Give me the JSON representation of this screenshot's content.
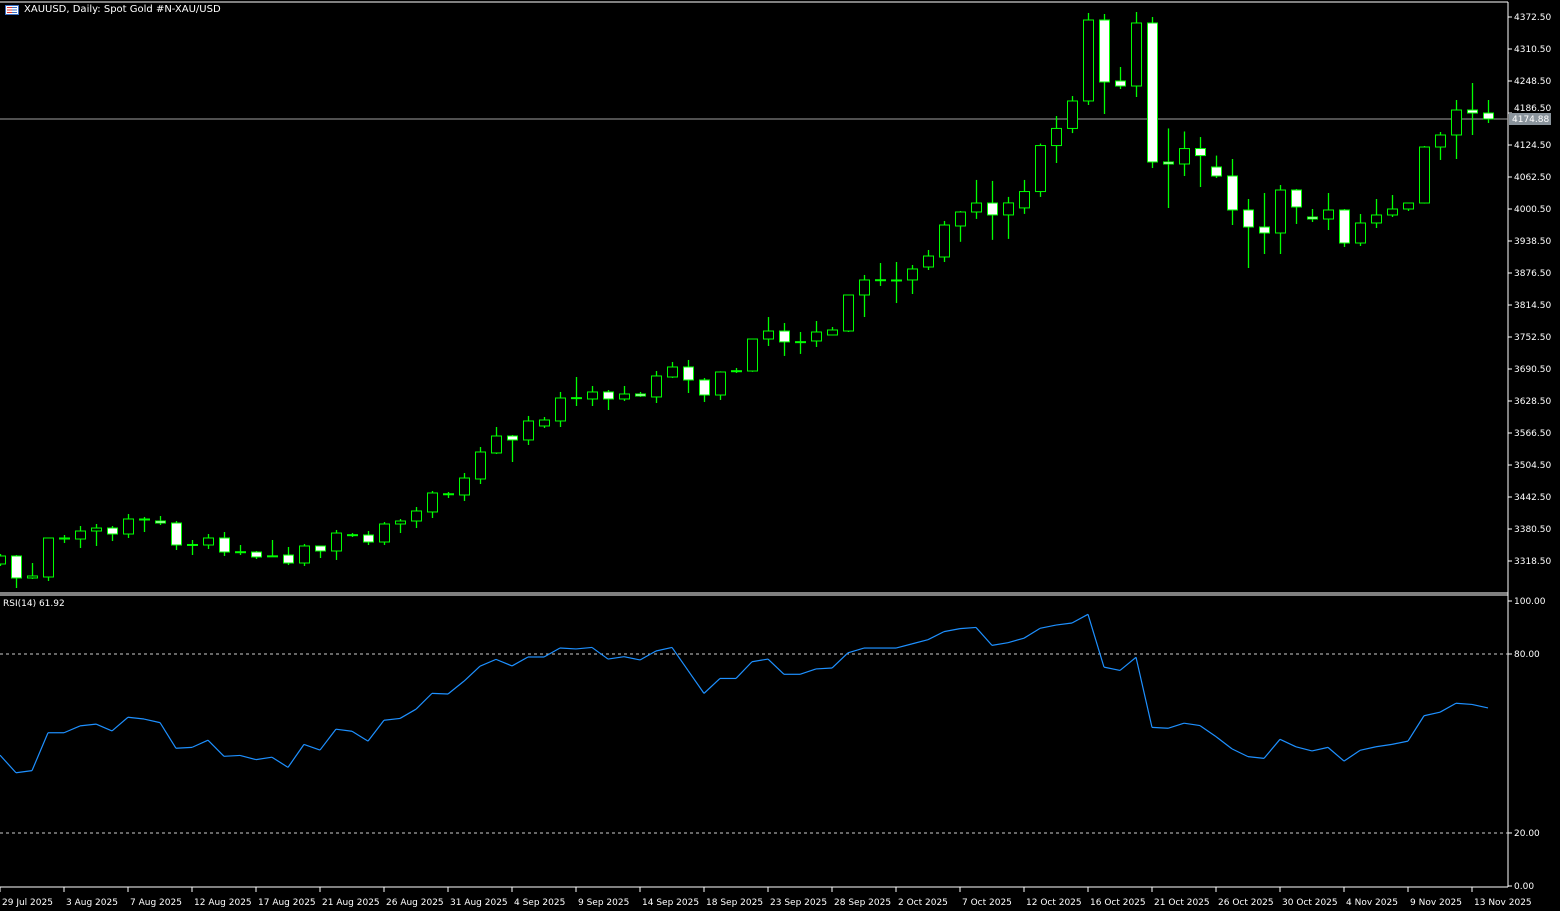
{
  "header": {
    "symbol_icon": "symbol-flag-icon",
    "title": "XAUUSD, Daily:  Spot Gold #N-XAU/USD"
  },
  "rsi_panel": {
    "label": "RSI(14) 61.92"
  },
  "colors": {
    "background": "#000000",
    "candle_outline": "#00ff00",
    "bear_fill": "#ffffff",
    "bull_fill": "#000000",
    "rsi_line": "#1e90ff",
    "price_line": "#a0a0a0",
    "price_tag_bg": "#8a949c"
  },
  "chart_data": [
    {
      "type": "candlestick",
      "title": "XAUUSD, Daily:  Spot Gold #N-XAU/USD",
      "ylim": [
        3300,
        4390
      ],
      "y_ticks": [
        "4372.50",
        "4310.50",
        "4248.50",
        "4186.50",
        "4124.50",
        "4062.50",
        "4000.50",
        "3938.50",
        "3876.50",
        "3814.50",
        "3752.50",
        "3690.50",
        "3628.50",
        "3566.50",
        "3504.50",
        "3442.50",
        "3380.50",
        "3318.50"
      ],
      "current_price": "4174.88",
      "x_tick_labels": [
        "29 Jul 2025",
        "3 Aug 2025",
        "7 Aug 2025",
        "12 Aug 2025",
        "17 Aug 2025",
        "21 Aug 2025",
        "26 Aug 2025",
        "31 Aug 2025",
        "4 Sep 2025",
        "9 Sep 2025",
        "14 Sep 2025",
        "18 Sep 2025",
        "23 Sep 2025",
        "28 Sep 2025",
        "2 Oct 2025",
        "7 Oct 2025",
        "12 Oct 2025",
        "16 Oct 2025",
        "21 Oct 2025",
        "26 Oct 2025",
        "30 Oct 2025",
        "4 Nov 2025",
        "9 Nov 2025",
        "13 Nov 2025"
      ],
      "ohlc_fields": [
        "open",
        "high",
        "low",
        "close"
      ],
      "ohlc": [
        [
          3312.7,
          3332.1,
          3308.8,
          3328.2
        ],
        [
          3328.2,
          3330.1,
          3266.2,
          3285.6
        ],
        [
          3285.6,
          3314.6,
          3283.7,
          3289.5
        ],
        [
          3287.5,
          3363.1,
          3279.8,
          3363.1
        ],
        [
          3361.1,
          3368.9,
          3353.4,
          3363.1
        ],
        [
          3361.1,
          3386.3,
          3343.7,
          3376.6
        ],
        [
          3376.6,
          3390.2,
          3347.6,
          3382.4
        ],
        [
          3382.4,
          3386.3,
          3357.2,
          3370.8
        ],
        [
          3370.8,
          3409.6,
          3363.1,
          3399.9
        ],
        [
          3398.0,
          3403.8,
          3374.7,
          3399.9
        ],
        [
          3396.0,
          3405.7,
          3388.3,
          3392.1
        ],
        [
          3392.1,
          3396.0,
          3339.8,
          3349.5
        ],
        [
          3349.5,
          3359.2,
          3330.1,
          3350.5
        ],
        [
          3349.5,
          3370.8,
          3341.8,
          3363.1
        ],
        [
          3363.1,
          3374.7,
          3328.2,
          3335.9
        ],
        [
          3335.9,
          3349.5,
          3330.1,
          3336.5
        ],
        [
          3335.9,
          3337.9,
          3322.4,
          3326.3
        ],
        [
          3328.2,
          3359.2,
          3326.3,
          3328.5
        ],
        [
          3330.1,
          3345.6,
          3310.8,
          3314.6
        ],
        [
          3314.6,
          3351.5,
          3308.8,
          3347.6
        ],
        [
          3347.6,
          3348.5,
          3324.3,
          3337.9
        ],
        [
          3337.9,
          3378.6,
          3320.5,
          3372.7
        ],
        [
          3368.9,
          3372.7,
          3365.0,
          3369.5
        ],
        [
          3368.9,
          3376.6,
          3349.5,
          3355.3
        ],
        [
          3355.3,
          3394.1,
          3349.5,
          3390.2
        ],
        [
          3390.2,
          3399.9,
          3372.7,
          3396.0
        ],
        [
          3396.0,
          3423.1,
          3382.4,
          3415.4
        ],
        [
          3413.5,
          3454.1,
          3401.8,
          3450.3
        ],
        [
          3448.3,
          3452.2,
          3440.6,
          3448.8
        ],
        [
          3446.4,
          3489.0,
          3434.8,
          3479.3
        ],
        [
          3477.4,
          3539.4,
          3467.7,
          3529.7
        ],
        [
          3527.8,
          3578.1,
          3525.8,
          3560.7
        ],
        [
          3560.7,
          3562.6,
          3510.3,
          3553.0
        ],
        [
          3553.0,
          3599.5,
          3543.3,
          3589.8
        ],
        [
          3580.1,
          3597.5,
          3576.2,
          3591.7
        ],
        [
          3589.8,
          3646.0,
          3578.1,
          3634.3
        ],
        [
          3634.3,
          3675.0,
          3618.8,
          3635.0
        ],
        [
          3632.4,
          3657.6,
          3618.8,
          3646.0
        ],
        [
          3646.0,
          3649.8,
          3611.1,
          3632.4
        ],
        [
          3632.4,
          3657.6,
          3628.5,
          3642.1
        ],
        [
          3642.1,
          3646.0,
          3636.3,
          3638.2
        ],
        [
          3636.3,
          3686.6,
          3624.6,
          3677.0
        ],
        [
          3675.0,
          3704.1,
          3673.1,
          3694.4
        ],
        [
          3694.4,
          3708.0,
          3644.0,
          3669.2
        ],
        [
          3669.2,
          3673.1,
          3626.6,
          3640.1
        ],
        [
          3640.1,
          3686.0,
          3630.5,
          3684.7
        ],
        [
          3686.6,
          3692.5,
          3682.8,
          3687.2
        ],
        [
          3686.6,
          3749.5,
          3685.0,
          3748.6
        ],
        [
          3748.6,
          3791.2,
          3735.1,
          3764.1
        ],
        [
          3764.1,
          3779.6,
          3715.8,
          3743.0
        ],
        [
          3743.0,
          3762.2,
          3719.7,
          3743.5
        ],
        [
          3744.8,
          3783.5,
          3733.2,
          3762.2
        ],
        [
          3756.4,
          3771.9,
          3755.5,
          3766.1
        ],
        [
          3764.1,
          3834.5,
          3762.2,
          3833.9
        ],
        [
          3833.9,
          3872.7,
          3791.2,
          3863.0
        ],
        [
          3863.0,
          3895.9,
          3851.4,
          3863.5
        ],
        [
          3863.0,
          3897.8,
          3818.3,
          3862.5
        ],
        [
          3863.0,
          3892.0,
          3835.8,
          3884.3
        ],
        [
          3888.1,
          3921.1,
          3882.3,
          3909.4
        ],
        [
          3907.5,
          3977.3,
          3897.8,
          3969.5
        ],
        [
          3967.6,
          3996.6,
          3936.9,
          3994.7
        ],
        [
          3994.7,
          4056.8,
          3981.3,
          4012.1
        ],
        [
          4012.1,
          4054.9,
          3940.7,
          3989.0
        ],
        [
          3989.0,
          4023.9,
          3942.6,
          4012.3
        ],
        [
          4002.6,
          4056.8,
          3991.0,
          4034.3
        ],
        [
          4034.3,
          4127.3,
          4023.9,
          4123.4
        ],
        [
          4123.4,
          4180.7,
          4089.6,
          4156.6
        ],
        [
          4156.6,
          4219.4,
          4147.6,
          4209.8
        ],
        [
          4209.8,
          4380.3,
          4202.0,
          4366.7
        ],
        [
          4366.7,
          4378.3,
          4184.6,
          4246.6
        ],
        [
          4248.5,
          4275.6,
          4233.0,
          4238.8
        ],
        [
          4238.8,
          4382.2,
          4217.5,
          4360.9
        ],
        [
          4360.9,
          4372.5,
          4079.9,
          4091.6
        ],
        [
          4091.6,
          4156.6,
          4002.4,
          4087.7
        ],
        [
          4087.7,
          4150.7,
          4064.4,
          4117.6
        ],
        [
          4117.6,
          4139.9,
          4043.1,
          4104.0
        ],
        [
          4081.9,
          4104.0,
          4060.6,
          4064.4
        ],
        [
          4064.5,
          4097.4,
          3969.5,
          3998.6
        ],
        [
          3998.6,
          4019.9,
          3886.2,
          3965.6
        ],
        [
          3965.6,
          4031.5,
          3913.3,
          3954.0
        ],
        [
          3954.0,
          4047.0,
          3913.3,
          4037.3
        ],
        [
          4037.3,
          4039.3,
          3971.5,
          4004.4
        ],
        [
          3985.0,
          4000.5,
          3975.3,
          3981.1
        ],
        [
          3981.1,
          4031.5,
          3959.8,
          3998.6
        ],
        [
          3998.6,
          4000.5,
          3926.9,
          3934.6
        ],
        [
          3934.6,
          3990.8,
          3928.8,
          3973.4
        ],
        [
          3973.4,
          4019.9,
          3963.7,
          3988.9
        ],
        [
          3988.9,
          4027.6,
          3985.0,
          4000.5
        ],
        [
          4000.5,
          4012.1,
          3996.6,
          4012.1
        ],
        [
          4012.1,
          4122.6,
          4011.0,
          4120.6
        ],
        [
          4120.6,
          4149.7,
          4095.5,
          4143.9
        ],
        [
          4143.9,
          4211.7,
          4097.4,
          4192.3
        ],
        [
          4192.3,
          4244.6,
          4143.9,
          4186.5
        ],
        [
          4186.5,
          4211.7,
          4167.1,
          4174.88
        ]
      ]
    },
    {
      "type": "line",
      "title": "RSI(14) 61.92",
      "ylim": [
        0,
        100
      ],
      "y_ticks": [
        "100.00",
        "80.00",
        "20.00",
        "0.00"
      ],
      "levels": [
        80,
        20
      ],
      "series": [
        {
          "name": "RSI(14)",
          "values": [
            46.1,
            40.2,
            40.9,
            53.6,
            53.6,
            55.9,
            56.5,
            54.2,
            58.8,
            58.2,
            57.0,
            48.4,
            48.7,
            51.1,
            45.7,
            46.0,
            44.6,
            45.4,
            42.0,
            49.7,
            47.8,
            54.8,
            54.1,
            50.8,
            57.8,
            58.4,
            61.5,
            66.8,
            66.6,
            70.9,
            75.9,
            78.2,
            76.0,
            79.0,
            79.0,
            82.0,
            81.7,
            82.2,
            78.3,
            79.1,
            78.0,
            81.0,
            82.2,
            74.5,
            66.8,
            71.8,
            71.8,
            77.4,
            78.3,
            73.2,
            73.2,
            75.0,
            75.3,
            80.4,
            82.0,
            82.0,
            82.0,
            83.4,
            84.8,
            87.5,
            88.5,
            88.9,
            82.9,
            83.8,
            85.3,
            88.6,
            89.7,
            90.4,
            93.3,
            75.6,
            74.5,
            78.9,
            55.4,
            55.1,
            56.8,
            56.0,
            52.3,
            48.2,
            45.6,
            45.0,
            51.4,
            48.9,
            47.5,
            48.7,
            44.1,
            47.7,
            48.9,
            49.7,
            50.8,
            59.3,
            60.5,
            63.5,
            63.1,
            61.92
          ]
        }
      ]
    }
  ]
}
